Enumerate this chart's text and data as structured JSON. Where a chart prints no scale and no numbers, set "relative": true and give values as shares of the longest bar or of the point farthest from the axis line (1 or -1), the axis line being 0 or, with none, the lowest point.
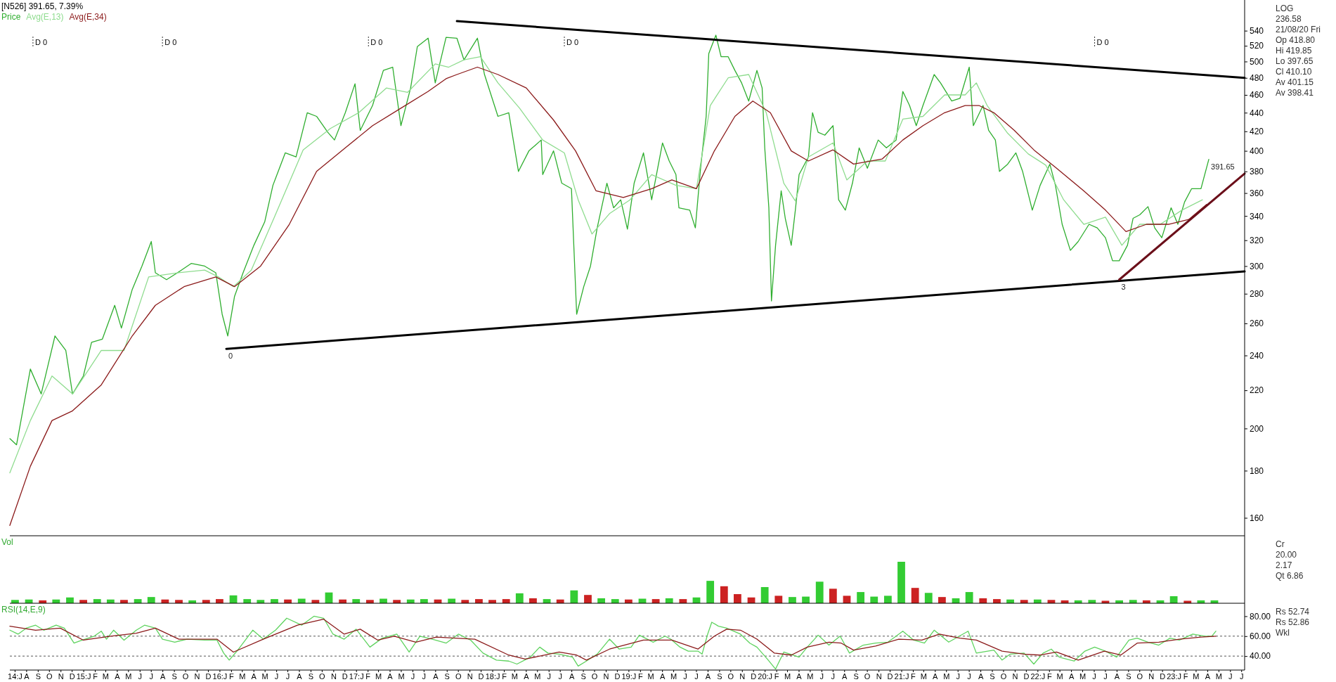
{
  "chart_data": [
    {
      "type": "line",
      "title": "[N526] 391.65, 7.39%",
      "log": true,
      "legend": "top left",
      "tick_labels": "y",
      "xlim": [
        "2014-06-18",
        "2023-07-10"
      ],
      "ylim": [
        153,
        583
      ],
      "yticks": [
        160,
        180,
        200,
        220,
        240,
        260,
        280,
        300,
        320,
        340,
        360,
        380,
        400,
        420,
        440,
        460,
        480,
        500,
        520,
        540
      ],
      "ref_lines": [
        {
          "axis": "x",
          "value": "2014-08-19",
          "label": "D 0",
          "line_style": "dashed"
        },
        {
          "axis": "x",
          "value": "2015-08-01",
          "label": "D 0",
          "line_style": "dashed"
        },
        {
          "axis": "x",
          "value": "2017-02-03",
          "label": "D 0",
          "line_style": "dashed"
        },
        {
          "axis": "x",
          "value": "2018-07-13",
          "label": "D 0",
          "line_style": "dashed"
        },
        {
          "axis": "x",
          "value": "2022-06-03",
          "label": "D 0",
          "line_style": "dashed"
        }
      ],
      "series": [
        {
          "name": "Price",
          "color": "#2fae2f",
          "x": [
            "2014-06-18",
            "2014-07-06",
            "2014-08-12",
            "2014-09-10",
            "2014-10-17",
            "2014-11-15",
            "2014-12-03",
            "2015-01-01",
            "2015-01-23",
            "2015-02-21",
            "2015-03-26",
            "2015-04-13",
            "2015-05-12",
            "2015-06-07",
            "2015-07-02",
            "2015-07-13",
            "2015-08-12",
            "2015-09-10",
            "2015-10-17",
            "2015-11-22",
            "2015-12-22",
            "2016-01-08",
            "2016-01-23",
            "2016-02-10",
            "2016-03-04",
            "2016-04-02",
            "2016-05-01",
            "2016-05-23",
            "2016-06-25",
            "2016-07-24",
            "2016-08-23",
            "2016-09-17",
            "2016-10-17",
            "2016-11-04",
            "2016-12-03",
            "2016-12-29",
            "2017-01-12",
            "2017-02-14",
            "2017-03-15",
            "2017-04-09",
            "2017-05-01",
            "2017-05-27",
            "2017-06-14",
            "2017-07-13",
            "2017-08-01",
            "2017-08-30",
            "2017-09-28",
            "2017-10-17",
            "2017-11-22",
            "2017-12-11",
            "2018-01-16",
            "2018-02-14",
            "2018-03-12",
            "2018-04-09",
            "2018-05-12",
            "2018-05-16",
            "2018-06-14",
            "2018-07-06",
            "2018-08-01",
            "2018-08-15",
            "2018-09-03",
            "2018-09-21",
            "2018-10-09",
            "2018-11-04",
            "2018-11-22",
            "2018-12-11",
            "2018-12-29",
            "2019-01-16",
            "2019-02-10",
            "2019-03-04",
            "2019-04-02",
            "2019-04-20",
            "2019-05-08",
            "2019-05-16",
            "2019-06-14",
            "2019-06-29",
            "2019-07-13",
            "2019-07-28",
            "2019-08-04",
            "2019-08-23",
            "2019-09-06",
            "2019-09-25",
            "2019-10-13",
            "2019-10-31",
            "2019-11-19",
            "2019-12-11",
            "2019-12-25",
            "2020-01-01",
            "2020-01-12",
            "2020-01-19",
            "2020-01-30",
            "2020-02-14",
            "2020-02-25",
            "2020-03-12",
            "2020-03-23",
            "2020-04-02",
            "2020-04-27",
            "2020-05-08",
            "2020-05-23",
            "2020-06-10",
            "2020-07-02",
            "2020-07-17",
            "2020-08-04",
            "2020-08-23",
            "2020-09-10",
            "2020-10-02",
            "2020-10-31",
            "2020-11-22",
            "2020-12-18",
            "2021-01-05",
            "2021-01-23",
            "2021-02-10",
            "2021-02-28",
            "2021-03-30",
            "2021-04-16",
            "2021-05-16",
            "2021-06-07",
            "2021-07-02",
            "2021-07-13",
            "2021-08-08",
            "2021-08-23",
            "2021-09-10",
            "2021-09-21",
            "2021-10-13",
            "2021-11-04",
            "2021-11-22",
            "2021-12-18",
            "2022-01-08",
            "2022-02-03",
            "2022-02-18",
            "2022-03-08",
            "2022-03-30",
            "2022-04-20",
            "2022-05-19",
            "2022-06-10",
            "2022-07-02",
            "2022-07-21",
            "2022-08-08",
            "2022-08-30",
            "2022-09-14",
            "2022-10-02",
            "2022-10-24",
            "2022-11-11",
            "2022-11-30",
            "2022-12-25",
            "2023-01-12",
            "2023-01-30",
            "2023-02-18",
            "2023-03-15",
            "2023-04-05"
          ],
          "values": [
            195,
            192,
            232,
            218,
            252,
            243,
            218,
            228,
            248,
            250,
            272,
            257,
            283,
            300,
            319,
            295,
            290,
            295,
            302,
            300,
            295,
            266,
            252,
            278,
            295,
            316,
            335,
            367,
            398,
            394,
            440,
            436,
            419,
            411,
            440,
            473,
            421,
            448,
            489,
            493,
            426,
            468,
            519,
            530,
            474,
            531,
            530,
            502,
            530,
            484,
            436,
            440,
            380,
            400,
            411,
            377,
            400,
            369,
            364,
            266,
            285,
            300,
            330,
            369,
            347,
            354,
            329,
            369,
            398,
            354,
            408,
            390,
            377,
            347,
            345,
            330,
            383,
            436,
            510,
            534,
            506,
            506,
            489,
            474,
            453,
            489,
            468,
            403,
            347,
            275,
            316,
            362,
            338,
            316,
            345,
            377,
            394,
            440,
            419,
            416,
            426,
            354,
            345,
            369,
            403,
            383,
            411,
            403,
            411,
            464,
            448,
            426,
            448,
            484,
            474,
            453,
            456,
            493,
            426,
            448,
            421,
            411,
            380,
            387,
            398,
            380,
            345,
            367,
            387,
            367,
            333,
            312,
            319,
            333,
            330,
            322,
            304,
            304,
            316,
            338,
            341,
            348,
            330,
            322,
            347,
            333,
            352,
            364,
            364,
            391.65
          ]
        },
        {
          "name": "Avg(E,13)",
          "color": "#8fdc8f",
          "x": [
            "2014-06-18",
            "2014-08-12",
            "2014-10-09",
            "2014-12-03",
            "2015-02-18",
            "2015-04-20",
            "2015-06-25",
            "2015-09-10",
            "2015-11-22",
            "2015-12-29",
            "2016-02-07",
            "2016-03-26",
            "2016-05-27",
            "2016-08-12",
            "2016-10-24",
            "2017-01-08",
            "2017-03-23",
            "2017-05-19",
            "2017-08-01",
            "2017-09-06",
            "2017-10-17",
            "2017-11-30",
            "2018-01-16",
            "2018-03-15",
            "2018-05-16",
            "2018-07-13",
            "2018-08-19",
            "2018-09-25",
            "2018-11-11",
            "2019-01-05",
            "2019-03-04",
            "2019-05-08",
            "2019-07-02",
            "2019-08-08",
            "2019-09-25",
            "2019-11-19",
            "2020-01-05",
            "2020-02-21",
            "2020-03-23",
            "2020-04-27",
            "2020-07-02",
            "2020-08-08",
            "2020-10-02",
            "2020-11-19",
            "2021-01-05",
            "2021-02-28",
            "2021-04-27",
            "2021-06-21",
            "2021-07-21",
            "2021-08-19",
            "2021-10-13",
            "2021-12-07",
            "2022-01-23",
            "2022-03-12",
            "2022-05-05",
            "2022-07-02",
            "2022-08-15",
            "2022-10-02",
            "2022-11-26",
            "2023-01-23",
            "2023-03-19"
          ],
          "values": [
            179,
            204,
            228,
            218,
            243,
            243,
            292,
            295,
            297,
            292,
            285,
            297,
            339,
            401,
            423,
            440,
            468,
            463,
            497,
            493,
            502,
            506,
            474,
            445,
            411,
            398,
            354,
            325,
            342,
            354,
            377,
            367,
            364,
            448,
            480,
            484,
            440,
            369,
            353,
            394,
            408,
            372,
            390,
            390,
            433,
            436,
            460,
            460,
            474,
            448,
            418,
            397,
            386,
            354,
            333,
            339,
            316,
            333,
            333,
            345,
            354
          ]
        },
        {
          "name": "Avg(E,34)",
          "color": "#8b1a1a",
          "x": [
            "2014-06-18",
            "2014-08-12",
            "2014-10-09",
            "2014-12-03",
            "2015-02-18",
            "2015-05-12",
            "2015-07-13",
            "2015-09-28",
            "2015-12-22",
            "2016-02-10",
            "2016-04-20",
            "2016-07-06",
            "2016-09-17",
            "2016-12-03",
            "2017-02-14",
            "2017-05-01",
            "2017-07-13",
            "2017-08-30",
            "2017-09-28",
            "2017-11-22",
            "2018-01-16",
            "2018-04-02",
            "2018-06-14",
            "2018-08-12",
            "2018-10-06",
            "2018-12-18",
            "2019-03-04",
            "2019-04-27",
            "2019-07-02",
            "2019-08-19",
            "2019-10-13",
            "2019-11-30",
            "2020-01-16",
            "2020-03-12",
            "2020-04-27",
            "2020-07-02",
            "2020-08-26",
            "2020-11-11",
            "2021-01-05",
            "2021-02-28",
            "2021-04-27",
            "2021-06-21",
            "2021-07-28",
            "2021-09-06",
            "2021-10-31",
            "2021-12-25",
            "2022-02-21",
            "2022-05-05",
            "2022-07-02",
            "2022-08-26",
            "2022-10-20",
            "2022-12-18",
            "2023-02-10",
            "2023-03-30"
          ],
          "values": [
            157,
            182,
            204,
            209,
            223,
            252,
            272,
            285,
            292,
            285,
            300,
            333,
            380,
            403,
            426,
            445,
            464,
            479,
            484,
            493,
            484,
            468,
            432,
            400,
            362,
            356,
            364,
            372,
            364,
            400,
            436,
            453,
            440,
            400,
            390,
            401,
            387,
            392,
            411,
            426,
            440,
            448,
            448,
            440,
            421,
            400,
            383,
            362,
            345,
            327,
            333,
            333,
            337,
            350
          ]
        },
        {
          "color": "#000000",
          "x": [
            "2017-09-28",
            "2023-07-10"
          ],
          "values": [
            553,
            480
          ]
        },
        {
          "color": "#000000",
          "x": [
            "2016-01-19",
            "2023-07-10"
          ],
          "values": [
            244,
            296
          ]
        },
        {
          "color": "#6b0f1a",
          "x": [
            "2022-08-08",
            "2023-07-10"
          ],
          "values": [
            290,
            378
          ]
        }
      ],
      "annotations": [
        {
          "text": "0",
          "x": "2016-01-19",
          "y": 244
        },
        {
          "text": "3",
          "x": "2022-08-08",
          "y": 290
        },
        {
          "text": "391.65",
          "x": "2023-04-05",
          "y": 391.65
        },
        "LOG",
        "236.58",
        "21/08/20 Fri",
        "Op 418.80",
        "Hi 419.85",
        "Lo 397.65",
        "Cl 410.10",
        "Av 401.15",
        "Av 398.41"
      ]
    },
    {
      "type": "bar",
      "title": "Vol",
      "relative": true,
      "tick_labels": false,
      "xlim": [
        "2014-06-18",
        "2023-07-10"
      ],
      "x": [
        "2014-07-02",
        "2014-08-08",
        "2014-09-14",
        "2014-10-20",
        "2014-11-26",
        "2015-01-01",
        "2015-02-07",
        "2015-03-15",
        "2015-04-20",
        "2015-05-27",
        "2015-07-02",
        "2015-08-08",
        "2015-09-14",
        "2015-10-20",
        "2015-11-26",
        "2016-01-01",
        "2016-02-07",
        "2016-03-15",
        "2016-04-20",
        "2016-05-27",
        "2016-07-02",
        "2016-08-08",
        "2016-09-14",
        "2016-10-20",
        "2016-11-26",
        "2017-01-01",
        "2017-02-07",
        "2017-03-15",
        "2017-04-20",
        "2017-05-27",
        "2017-07-02",
        "2017-08-08",
        "2017-09-14",
        "2017-10-20",
        "2017-11-26",
        "2018-01-01",
        "2018-02-07",
        "2018-03-15",
        "2018-04-20",
        "2018-05-27",
        "2018-07-02",
        "2018-08-08",
        "2018-09-14",
        "2018-10-20",
        "2018-11-26",
        "2019-01-01",
        "2019-02-07",
        "2019-03-15",
        "2019-04-20",
        "2019-05-27",
        "2019-07-02",
        "2019-08-08",
        "2019-09-14",
        "2019-10-20",
        "2019-11-26",
        "2020-01-01",
        "2020-02-07",
        "2020-03-15",
        "2020-04-20",
        "2020-05-27",
        "2020-07-02",
        "2020-08-08",
        "2020-09-14",
        "2020-10-20",
        "2020-11-26",
        "2021-01-01",
        "2021-02-07",
        "2021-03-15",
        "2021-04-20",
        "2021-05-27",
        "2021-07-02",
        "2021-08-08",
        "2021-09-14",
        "2021-10-20",
        "2021-11-26",
        "2022-01-01",
        "2022-02-07",
        "2022-03-15",
        "2022-04-20",
        "2022-05-27",
        "2022-07-02",
        "2022-08-08",
        "2022-09-14",
        "2022-10-20",
        "2022-11-26",
        "2023-01-01",
        "2023-02-07",
        "2023-03-15",
        "2023-04-20"
      ],
      "values": [
        0.08,
        0.09,
        0.07,
        0.09,
        0.14,
        0.08,
        0.1,
        0.09,
        0.08,
        0.1,
        0.15,
        0.09,
        0.08,
        0.07,
        0.08,
        0.1,
        0.19,
        0.1,
        0.08,
        0.1,
        0.09,
        0.11,
        0.08,
        0.26,
        0.09,
        0.1,
        0.08,
        0.11,
        0.08,
        0.09,
        0.1,
        0.09,
        0.11,
        0.08,
        0.1,
        0.08,
        0.1,
        0.24,
        0.12,
        0.1,
        0.09,
        0.31,
        0.2,
        0.12,
        0.1,
        0.09,
        0.11,
        0.1,
        0.12,
        0.1,
        0.14,
        0.54,
        0.41,
        0.22,
        0.14,
        0.39,
        0.18,
        0.15,
        0.16,
        0.52,
        0.35,
        0.18,
        0.27,
        0.16,
        0.18,
        1,
        0.37,
        0.25,
        0.15,
        0.12,
        0.27,
        0.12,
        0.1,
        0.09,
        0.08,
        0.09,
        0.08,
        0.07,
        0.07,
        0.08,
        0.06,
        0.07,
        0.08,
        0.07,
        0.07,
        0.17,
        0.06,
        0.07,
        0.07
      ],
      "colors": [
        "#33cc33",
        "#33cc33",
        "#cc2222",
        "#33cc33",
        "#33cc33",
        "#cc2222",
        "#33cc33",
        "#33cc33",
        "#cc2222",
        "#33cc33",
        "#33cc33",
        "#cc2222",
        "#cc2222",
        "#33cc33",
        "#cc2222",
        "#cc2222",
        "#33cc33",
        "#33cc33",
        "#33cc33",
        "#33cc33",
        "#cc2222",
        "#33cc33",
        "#cc2222",
        "#33cc33",
        "#cc2222",
        "#33cc33",
        "#cc2222",
        "#33cc33",
        "#cc2222",
        "#33cc33",
        "#33cc33",
        "#cc2222",
        "#33cc33",
        "#cc2222",
        "#cc2222",
        "#cc2222",
        "#cc2222",
        "#33cc33",
        "#cc2222",
        "#33cc33",
        "#cc2222",
        "#33cc33",
        "#cc2222",
        "#33cc33",
        "#33cc33",
        "#cc2222",
        "#33cc33",
        "#cc2222",
        "#33cc33",
        "#cc2222",
        "#33cc33",
        "#33cc33",
        "#cc2222",
        "#cc2222",
        "#cc2222",
        "#33cc33",
        "#cc2222",
        "#33cc33",
        "#33cc33",
        "#33cc33",
        "#cc2222",
        "#cc2222",
        "#33cc33",
        "#33cc33",
        "#33cc33",
        "#33cc33",
        "#cc2222",
        "#33cc33",
        "#cc2222",
        "#33cc33",
        "#33cc33",
        "#cc2222",
        "#cc2222",
        "#33cc33",
        "#cc2222",
        "#33cc33",
        "#cc2222",
        "#cc2222",
        "#33cc33",
        "#33cc33",
        "#cc2222",
        "#33cc33",
        "#33cc33",
        "#cc2222",
        "#33cc33",
        "#33cc33",
        "#cc2222",
        "#33cc33",
        "#33cc33"
      ],
      "annotations": [
        "Cr",
        "20.00",
        "2.17",
        "Qt 6.86"
      ]
    },
    {
      "type": "line",
      "title": "RSI(14,E,9)",
      "xlim": [
        "2014-06-18",
        "2023-07-10"
      ],
      "ylim": [
        26,
        93
      ],
      "yticks": [
        {
          "value": 40,
          "label": "40.00"
        },
        {
          "value": 60,
          "label": "60.00"
        },
        {
          "value": 80,
          "label": "80.00"
        }
      ],
      "xticks": [
        {
          "value": "2014-07-01",
          "label": "14:J"
        },
        {
          "value": "2014-08-01",
          "label": "A"
        },
        {
          "value": "2014-09-01",
          "label": "S"
        },
        {
          "value": "2014-10-01",
          "label": "O"
        },
        {
          "value": "2014-11-01",
          "label": "N"
        },
        {
          "value": "2014-12-01",
          "label": "D"
        },
        {
          "value": "2015-01-01",
          "label": "15:J"
        },
        {
          "value": "2015-02-01",
          "label": "F"
        },
        {
          "value": "2015-03-01",
          "label": "M"
        },
        {
          "value": "2015-04-01",
          "label": "A"
        },
        {
          "value": "2015-05-01",
          "label": "M"
        },
        {
          "value": "2015-06-01",
          "label": "J"
        },
        {
          "value": "2015-07-01",
          "label": "J"
        },
        {
          "value": "2015-08-01",
          "label": "A"
        },
        {
          "value": "2015-09-01",
          "label": "S"
        },
        {
          "value": "2015-10-01",
          "label": "O"
        },
        {
          "value": "2015-11-01",
          "label": "N"
        },
        {
          "value": "2015-12-01",
          "label": "D"
        },
        {
          "value": "2016-01-01",
          "label": "16:J"
        },
        {
          "value": "2016-02-01",
          "label": "F"
        },
        {
          "value": "2016-03-01",
          "label": "M"
        },
        {
          "value": "2016-04-01",
          "label": "A"
        },
        {
          "value": "2016-05-01",
          "label": "M"
        },
        {
          "value": "2016-06-01",
          "label": "J"
        },
        {
          "value": "2016-07-01",
          "label": "J"
        },
        {
          "value": "2016-08-01",
          "label": "A"
        },
        {
          "value": "2016-09-01",
          "label": "S"
        },
        {
          "value": "2016-10-01",
          "label": "O"
        },
        {
          "value": "2016-11-01",
          "label": "N"
        },
        {
          "value": "2016-12-01",
          "label": "D"
        },
        {
          "value": "2017-01-01",
          "label": "17:J"
        },
        {
          "value": "2017-02-01",
          "label": "F"
        },
        {
          "value": "2017-03-01",
          "label": "M"
        },
        {
          "value": "2017-04-01",
          "label": "A"
        },
        {
          "value": "2017-05-01",
          "label": "M"
        },
        {
          "value": "2017-06-01",
          "label": "J"
        },
        {
          "value": "2017-07-01",
          "label": "J"
        },
        {
          "value": "2017-08-01",
          "label": "A"
        },
        {
          "value": "2017-09-01",
          "label": "S"
        },
        {
          "value": "2017-10-01",
          "label": "O"
        },
        {
          "value": "2017-11-01",
          "label": "N"
        },
        {
          "value": "2017-12-01",
          "label": "D"
        },
        {
          "value": "2018-01-01",
          "label": "18:J"
        },
        {
          "value": "2018-02-01",
          "label": "F"
        },
        {
          "value": "2018-03-01",
          "label": "M"
        },
        {
          "value": "2018-04-01",
          "label": "A"
        },
        {
          "value": "2018-05-01",
          "label": "M"
        },
        {
          "value": "2018-06-01",
          "label": "J"
        },
        {
          "value": "2018-07-01",
          "label": "J"
        },
        {
          "value": "2018-08-01",
          "label": "A"
        },
        {
          "value": "2018-09-01",
          "label": "S"
        },
        {
          "value": "2018-10-01",
          "label": "O"
        },
        {
          "value": "2018-11-01",
          "label": "N"
        },
        {
          "value": "2018-12-01",
          "label": "D"
        },
        {
          "value": "2019-01-01",
          "label": "19:J"
        },
        {
          "value": "2019-02-01",
          "label": "F"
        },
        {
          "value": "2019-03-01",
          "label": "M"
        },
        {
          "value": "2019-04-01",
          "label": "A"
        },
        {
          "value": "2019-05-01",
          "label": "M"
        },
        {
          "value": "2019-06-01",
          "label": "J"
        },
        {
          "value": "2019-07-01",
          "label": "J"
        },
        {
          "value": "2019-08-01",
          "label": "A"
        },
        {
          "value": "2019-09-01",
          "label": "S"
        },
        {
          "value": "2019-10-01",
          "label": "O"
        },
        {
          "value": "2019-11-01",
          "label": "N"
        },
        {
          "value": "2019-12-01",
          "label": "D"
        },
        {
          "value": "2020-01-01",
          "label": "20:J"
        },
        {
          "value": "2020-02-01",
          "label": "F"
        },
        {
          "value": "2020-03-01",
          "label": "M"
        },
        {
          "value": "2020-04-01",
          "label": "A"
        },
        {
          "value": "2020-05-01",
          "label": "M"
        },
        {
          "value": "2020-06-01",
          "label": "J"
        },
        {
          "value": "2020-07-01",
          "label": "J"
        },
        {
          "value": "2020-08-01",
          "label": "A"
        },
        {
          "value": "2020-09-01",
          "label": "S"
        },
        {
          "value": "2020-10-01",
          "label": "O"
        },
        {
          "value": "2020-11-01",
          "label": "N"
        },
        {
          "value": "2020-12-01",
          "label": "D"
        },
        {
          "value": "2021-01-01",
          "label": "21:J"
        },
        {
          "value": "2021-02-01",
          "label": "F"
        },
        {
          "value": "2021-03-01",
          "label": "M"
        },
        {
          "value": "2021-04-01",
          "label": "A"
        },
        {
          "value": "2021-05-01",
          "label": "M"
        },
        {
          "value": "2021-06-01",
          "label": "J"
        },
        {
          "value": "2021-07-01",
          "label": "J"
        },
        {
          "value": "2021-08-01",
          "label": "A"
        },
        {
          "value": "2021-09-01",
          "label": "S"
        },
        {
          "value": "2021-10-01",
          "label": "O"
        },
        {
          "value": "2021-11-01",
          "label": "N"
        },
        {
          "value": "2021-12-01",
          "label": "D"
        },
        {
          "value": "2022-01-01",
          "label": "22:J"
        },
        {
          "value": "2022-02-01",
          "label": "F"
        },
        {
          "value": "2022-03-01",
          "label": "M"
        },
        {
          "value": "2022-04-01",
          "label": "A"
        },
        {
          "value": "2022-05-01",
          "label": "M"
        },
        {
          "value": "2022-06-01",
          "label": "J"
        },
        {
          "value": "2022-07-01",
          "label": "J"
        },
        {
          "value": "2022-08-01",
          "label": "A"
        },
        {
          "value": "2022-09-01",
          "label": "S"
        },
        {
          "value": "2022-10-01",
          "label": "O"
        },
        {
          "value": "2022-11-01",
          "label": "N"
        },
        {
          "value": "2022-12-01",
          "label": "D"
        },
        {
          "value": "2023-01-01",
          "label": "23:J"
        },
        {
          "value": "2023-02-01",
          "label": "F"
        },
        {
          "value": "2023-03-01",
          "label": "M"
        },
        {
          "value": "2023-04-01",
          "label": "A"
        },
        {
          "value": "2023-05-01",
          "label": "M"
        },
        {
          "value": "2023-06-01",
          "label": "J"
        },
        {
          "value": "2023-07-01",
          "label": "J"
        }
      ],
      "ref_lines": [
        {
          "axis": "y",
          "value": 40,
          "line_style": "dashed"
        },
        {
          "axis": "y",
          "value": 60,
          "line_style": "dashed"
        }
      ],
      "series": [
        {
          "color": "#5fd35f",
          "x": [
            "2014-06-18",
            "2014-07-10",
            "2014-08-01",
            "2014-08-26",
            "2014-09-17",
            "2014-10-20",
            "2014-11-11",
            "2014-12-07",
            "2014-12-29",
            "2015-01-30",
            "2015-02-18",
            "2015-03-04",
            "2015-03-23",
            "2015-04-20",
            "2015-05-23",
            "2015-06-14",
            "2015-07-13",
            "2015-08-01",
            "2015-09-03",
            "2015-10-06",
            "2015-11-22",
            "2015-12-25",
            "2016-01-12",
            "2016-01-27",
            "2016-02-21",
            "2016-03-30",
            "2016-04-27",
            "2016-05-30",
            "2016-06-29",
            "2016-08-08",
            "2016-09-10",
            "2016-10-06",
            "2016-10-31",
            "2016-11-30",
            "2017-01-01",
            "2017-02-07",
            "2017-03-12",
            "2017-04-20",
            "2017-05-23",
            "2017-06-21",
            "2017-07-24",
            "2017-08-30",
            "2017-10-02",
            "2017-11-04",
            "2017-12-07",
            "2018-01-12",
            "2018-02-14",
            "2018-03-08",
            "2018-04-13",
            "2018-05-08",
            "2018-05-30",
            "2018-06-29",
            "2018-08-04",
            "2018-08-19",
            "2018-09-10",
            "2018-10-09",
            "2018-11-11",
            "2018-12-07",
            "2019-01-08",
            "2019-01-30",
            "2019-03-08",
            "2019-04-09",
            "2019-04-24",
            "2019-05-19",
            "2019-06-10",
            "2019-07-06",
            "2019-07-17",
            "2019-08-01",
            "2019-08-12",
            "2019-08-30",
            "2019-09-21",
            "2019-10-28",
            "2019-11-22",
            "2019-12-11",
            "2020-01-08",
            "2020-01-30",
            "2020-02-21",
            "2020-04-02",
            "2020-04-24",
            "2020-05-23",
            "2020-06-21",
            "2020-07-21",
            "2020-08-15",
            "2020-09-21",
            "2020-10-24",
            "2020-11-26",
            "2021-01-05",
            "2021-02-03",
            "2021-03-04",
            "2021-03-30",
            "2021-05-08",
            "2021-06-29",
            "2021-07-21",
            "2021-09-06",
            "2021-09-28",
            "2021-10-20",
            "2021-11-26",
            "2021-12-22",
            "2022-01-16",
            "2022-02-07",
            "2022-02-28",
            "2022-04-09",
            "2022-05-08",
            "2022-06-03",
            "2022-07-02",
            "2022-08-01",
            "2022-09-03",
            "2022-09-25",
            "2022-10-24",
            "2022-11-22",
            "2022-12-22",
            "2023-01-16",
            "2023-02-21",
            "2023-03-26",
            "2023-04-13",
            "2023-04-24"
          ],
          "values": [
            66,
            62,
            68,
            71,
            66,
            71,
            68,
            53,
            56,
            60,
            65,
            57,
            66,
            56,
            66,
            71,
            68,
            57,
            54,
            57,
            56,
            56,
            43,
            36,
            47,
            66,
            57,
            66,
            78,
            71,
            80,
            78,
            62,
            57,
            67,
            49,
            58,
            62,
            44,
            60,
            57,
            53,
            62,
            56,
            43,
            36,
            35,
            32,
            39,
            49,
            43,
            42,
            39,
            30,
            35,
            42,
            57,
            47,
            49,
            61,
            54,
            60,
            57,
            49,
            45,
            45,
            42,
            62,
            74,
            70,
            68,
            62,
            53,
            49,
            37,
            27,
            44,
            39,
            49,
            61,
            51,
            60,
            43,
            51,
            53,
            54,
            65,
            56,
            53,
            66,
            54,
            65,
            43,
            46,
            36,
            42,
            43,
            32,
            43,
            47,
            39,
            35,
            45,
            49,
            45,
            39,
            56,
            58,
            54,
            51,
            58,
            56,
            62,
            60,
            60,
            65
          ]
        },
        {
          "color": "#8b1a1a",
          "x": [
            "2014-06-18",
            "2014-08-26",
            "2014-10-31",
            "2015-01-01",
            "2015-03-15",
            "2015-05-23",
            "2015-07-13",
            "2015-09-14",
            "2015-12-25",
            "2016-02-07",
            "2016-04-27",
            "2016-07-28",
            "2016-10-06",
            "2016-11-30",
            "2017-01-12",
            "2017-02-28",
            "2017-04-13",
            "2017-06-10",
            "2017-08-04",
            "2017-11-15",
            "2018-02-14",
            "2018-03-30",
            "2018-06-29",
            "2018-08-15",
            "2018-09-10",
            "2018-11-11",
            "2019-02-10",
            "2019-04-27",
            "2019-07-06",
            "2019-08-19",
            "2019-09-21",
            "2019-10-28",
            "2019-12-11",
            "2020-01-27",
            "2020-03-12",
            "2020-04-24",
            "2020-06-21",
            "2020-07-24",
            "2020-08-26",
            "2020-10-24",
            "2020-12-25",
            "2021-02-25",
            "2021-04-13",
            "2021-06-07",
            "2021-07-21",
            "2021-09-28",
            "2021-11-26",
            "2022-01-08",
            "2022-02-21",
            "2022-04-20",
            "2022-06-29",
            "2022-08-12",
            "2022-09-25",
            "2022-11-22",
            "2023-01-16",
            "2023-03-15",
            "2023-04-24"
          ],
          "values": [
            70,
            66,
            68,
            56,
            60,
            63,
            68,
            57,
            57,
            44,
            57,
            71,
            77,
            62,
            67,
            56,
            60,
            54,
            59,
            57,
            41,
            37,
            44,
            41,
            36,
            47,
            56,
            56,
            47,
            60,
            67,
            66,
            57,
            43,
            41,
            49,
            54,
            53,
            46,
            50,
            57,
            56,
            62,
            58,
            56,
            45,
            42,
            41,
            44,
            36,
            45,
            41,
            53,
            54,
            57,
            59,
            60
          ]
        }
      ],
      "annotations": [
        "Rs 52.74",
        "Rs 52.86",
        "Wkl"
      ]
    }
  ]
}
